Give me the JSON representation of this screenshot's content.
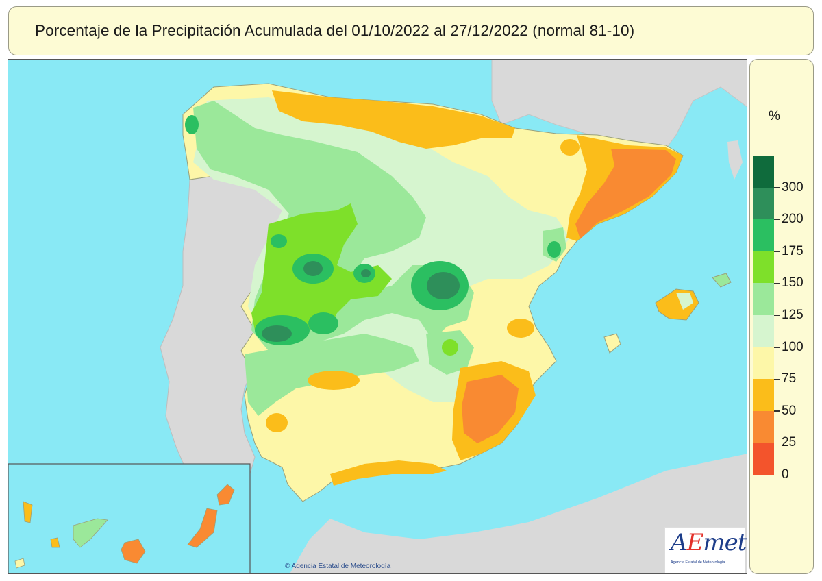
{
  "header": {
    "title": "Porcentaje de la Precipitación Acumulada del 01/10/2022 al 27/12/2022 (normal 81-10)"
  },
  "legend": {
    "unit": "%",
    "classes": [
      {
        "label": "",
        "color": "#0f6b3c"
      },
      {
        "label": "300",
        "color": "#2e8f5a"
      },
      {
        "label": "200",
        "color": "#2bbf61"
      },
      {
        "label": "175",
        "color": "#7ee02a"
      },
      {
        "label": "150",
        "color": "#9be89a"
      },
      {
        "label": "125",
        "color": "#d6f5cf"
      },
      {
        "label": "100",
        "color": "#fdf7a8"
      },
      {
        "label": "75",
        "color": "#fbbd1a"
      },
      {
        "label": "50",
        "color": "#f98a32"
      },
      {
        "label": "25",
        "color": "#f3542c"
      },
      {
        "label": "0",
        "color": ""
      }
    ]
  },
  "map": {
    "sea_color": "#89e9f5",
    "land_outside_color": "#d9d9d9",
    "copyright": "Agencia Estatal de Meteorología"
  },
  "logo": {
    "word_a": "A",
    "word_e": "E",
    "word_rest": "met",
    "sub": "Agencia Estatal de Meteorología"
  }
}
